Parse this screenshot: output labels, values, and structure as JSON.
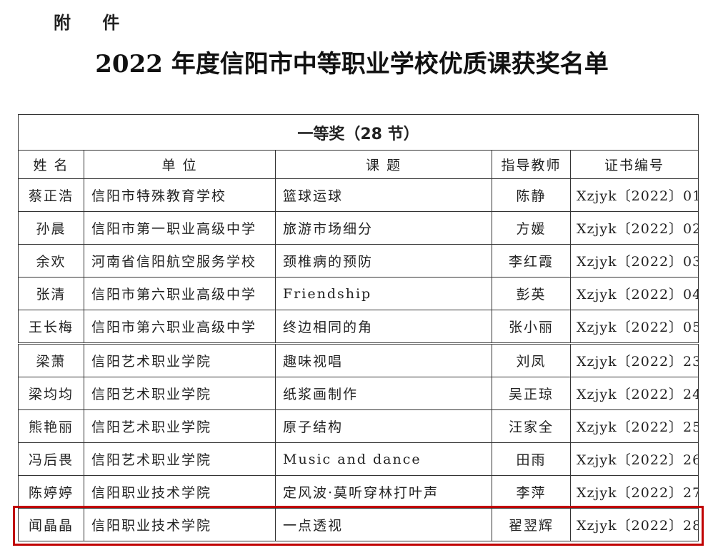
{
  "header": {
    "attachment": "附 件",
    "title": "2022 年度信阳市中等职业学校优质课获奖名单"
  },
  "table": {
    "caption": "一等奖（28 节）",
    "columns": [
      "姓 名",
      "单 位",
      "课 题",
      "指导教师",
      "证书编号"
    ],
    "rows": [
      [
        "蔡正浩",
        "信阳市特殊教育学校",
        "篮球运球",
        "陈静",
        "Xzjyk〔2022〕01"
      ],
      [
        "孙晨",
        "信阳市第一职业高级中学",
        "旅游市场细分",
        "方媛",
        "Xzjyk〔2022〕02"
      ],
      [
        "余欢",
        "河南省信阳航空服务学校",
        "颈椎病的预防",
        "李红霞",
        "Xzjyk〔2022〕03"
      ],
      [
        "张清",
        "信阳市第六职业高级中学",
        "Friendship",
        "彭英",
        "Xzjyk〔2022〕04"
      ],
      [
        "王长梅",
        "信阳市第六职业高级中学",
        "终边相同的角",
        "张小丽",
        "Xzjyk〔2022〕05"
      ],
      [
        "梁萧",
        "信阳艺术职业学院",
        "趣味视唱",
        "刘凤",
        "Xzjyk〔2022〕23"
      ],
      [
        "梁均均",
        "信阳艺术职业学院",
        "纸浆画制作",
        "吴正琼",
        "Xzjyk〔2022〕24"
      ],
      [
        "熊艳丽",
        "信阳艺术职业学院",
        "原子结构",
        "汪家全",
        "Xzjyk〔2022〕25"
      ],
      [
        "冯后畏",
        "信阳艺术职业学院",
        "Music  and  dance",
        "田雨",
        "Xzjyk〔2022〕26"
      ],
      [
        "陈婷婷",
        "信阳职业技术学院",
        "定风波·莫听穿林打叶声",
        "李萍",
        "Xzjyk〔2022〕27"
      ],
      [
        "闻晶晶",
        "信阳职业技术学院",
        "一点透视",
        "翟翌辉",
        "Xzjyk〔2022〕28"
      ]
    ]
  },
  "highlight": {
    "color": "#c00000",
    "row_index": 10
  }
}
